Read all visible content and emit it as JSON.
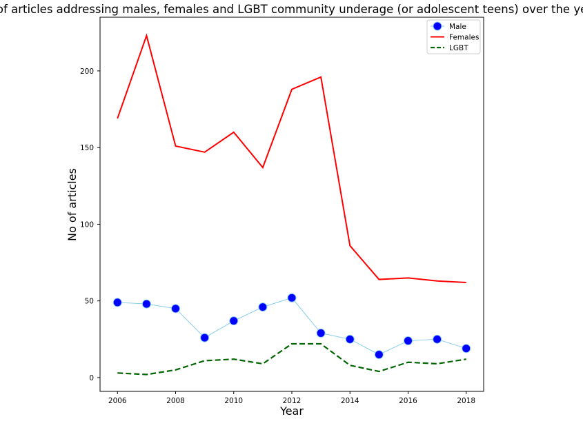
{
  "chart_data": {
    "type": "line",
    "title": "No of articles addressing males, females and LGBT community underage (or adolescent teens) over the years",
    "xlabel": "Year",
    "ylabel": "No of articles",
    "x": [
      2006,
      2007,
      2008,
      2009,
      2010,
      2011,
      2012,
      2013,
      2014,
      2015,
      2016,
      2017,
      2018
    ],
    "xticks": [
      "2006",
      "2008",
      "2010",
      "2012",
      "2014",
      "2016",
      "2018"
    ],
    "yticks": [
      "0",
      "50",
      "100",
      "150",
      "200"
    ],
    "xlim": [
      2005.4,
      2018.6
    ],
    "ylim": [
      -9,
      235
    ],
    "grid": false,
    "legend_position": "upper right",
    "series": [
      {
        "name": "Male",
        "values": [
          49,
          48,
          45,
          26,
          37,
          46,
          52,
          29,
          25,
          15,
          24,
          25,
          19
        ],
        "color": "#87ceeb",
        "marker_color": "#0000ff",
        "style": "solid-markers"
      },
      {
        "name": "Females",
        "values": [
          169,
          223,
          151,
          147,
          160,
          137,
          188,
          196,
          86,
          64,
          65,
          63,
          62
        ],
        "color": "#ff0000",
        "style": "solid"
      },
      {
        "name": "LGBT",
        "values": [
          3,
          2,
          5,
          11,
          12,
          9,
          22,
          22,
          8,
          4,
          10,
          9,
          12
        ],
        "color": "#006400",
        "style": "dashed"
      }
    ]
  }
}
